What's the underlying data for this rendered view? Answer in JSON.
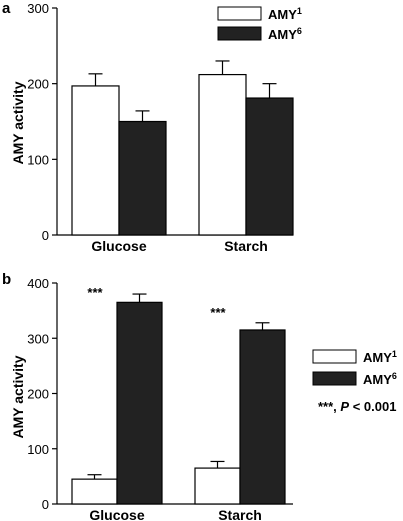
{
  "chart_data": [
    {
      "panel": "a",
      "type": "bar",
      "categories": [
        "Glucose",
        "Starch"
      ],
      "series": [
        {
          "name": "AMY1",
          "fill": "#ffffff",
          "values": [
            197,
            212
          ],
          "errors": [
            16,
            18
          ]
        },
        {
          "name": "AMY6",
          "fill": "#222222",
          "values": [
            150,
            181
          ],
          "errors": [
            14,
            19
          ]
        }
      ],
      "ylabel": "AMY activity",
      "ylim": [
        0,
        300
      ],
      "yticks": [
        "0",
        "100",
        "200",
        "300"
      ],
      "legend": [
        {
          "base": "AMY",
          "sup": "1"
        },
        {
          "base": "AMY",
          "sup": "6"
        }
      ],
      "legend_position": "top-right",
      "grid": false
    },
    {
      "panel": "b",
      "type": "bar",
      "categories": [
        "Glucose",
        "Starch"
      ],
      "series": [
        {
          "name": "AMY1",
          "fill": "#ffffff",
          "values": [
            45,
            65
          ],
          "errors": [
            8,
            12
          ]
        },
        {
          "name": "AMY6",
          "fill": "#222222",
          "values": [
            365,
            315
          ],
          "errors": [
            15,
            13
          ]
        }
      ],
      "ylabel": "AMY activity",
      "ylim": [
        0,
        400
      ],
      "yticks": [
        "0",
        "100",
        "200",
        "300",
        "400"
      ],
      "annotations": [
        "***",
        "***"
      ],
      "legend": [
        {
          "base": "AMY",
          "sup": "1"
        },
        {
          "base": "AMY",
          "sup": "6"
        }
      ],
      "legend_position": "right",
      "note": {
        "stars": "***, ",
        "p": "P",
        "rest": " < 0.001"
      },
      "grid": false
    }
  ]
}
